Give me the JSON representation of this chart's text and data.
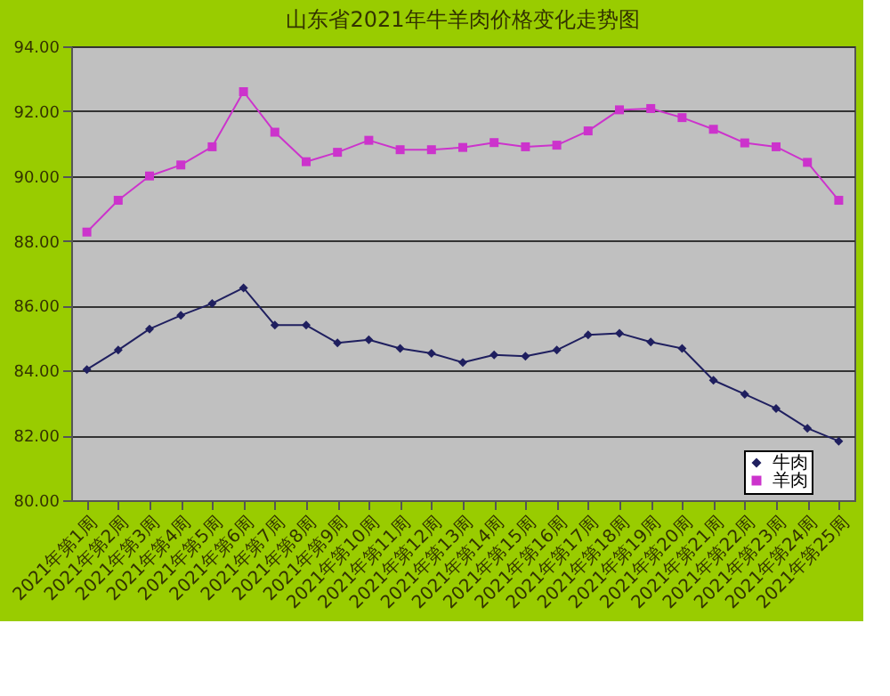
{
  "chart_data": {
    "type": "line",
    "title": "山东省2021年牛羊肉价格变化走势图",
    "categories": [
      "2021年第1周",
      "2021年第2周",
      "2021年第3周",
      "2021年第4周",
      "2021年第5周",
      "2021年第6周",
      "2021年第7周",
      "2021年第8周",
      "2021年第9周",
      "2021年第10周",
      "2021年第11周",
      "2021年第12周",
      "2021年第13周",
      "2021年第14周",
      "2021年第15周",
      "2021年第16周",
      "2021年第17周",
      "2021年第18周",
      "2021年第19周",
      "2021年第20周",
      "2021年第21周",
      "2021年第22周",
      "2021年第23周",
      "2021年第24周",
      "2021年第25周"
    ],
    "series": [
      {
        "name": "牛肉",
        "color": "#1f1f5f",
        "marker": "diamond",
        "values": [
          84.03,
          84.63,
          85.28,
          85.7,
          86.07,
          86.55,
          85.4,
          85.4,
          84.85,
          84.95,
          84.68,
          84.53,
          84.25,
          84.48,
          84.44,
          84.63,
          85.1,
          85.15,
          84.88,
          84.68,
          83.7,
          83.27,
          82.83,
          82.22,
          81.82
        ]
      },
      {
        "name": "羊肉",
        "color": "#cc33cc",
        "marker": "square",
        "values": [
          88.27,
          89.25,
          90.0,
          90.34,
          90.9,
          92.6,
          91.35,
          90.44,
          90.73,
          91.1,
          90.81,
          90.81,
          90.88,
          91.03,
          90.9,
          90.95,
          91.39,
          92.04,
          92.08,
          91.8,
          91.44,
          91.02,
          90.9,
          90.42,
          89.25
        ]
      }
    ],
    "ylim": [
      80,
      94
    ],
    "yticks": [
      {
        "value": 80,
        "label": "80.00"
      },
      {
        "value": 82,
        "label": "82.00"
      },
      {
        "value": 84,
        "label": "84.00"
      },
      {
        "value": 86,
        "label": "86.00"
      },
      {
        "value": 88,
        "label": "88.00"
      },
      {
        "value": 90,
        "label": "90.00"
      },
      {
        "value": 92,
        "label": "92.00"
      },
      {
        "value": 94,
        "label": "94.00"
      }
    ],
    "grid": "y",
    "legend": "bottom right",
    "line_style": "solid"
  }
}
